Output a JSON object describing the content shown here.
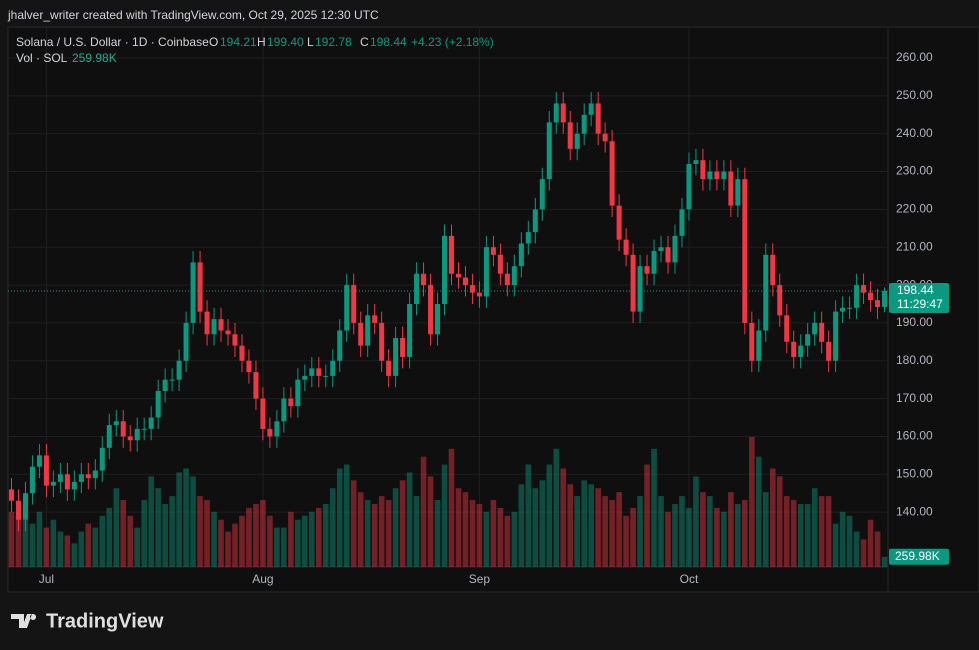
{
  "attribution": "jhalver_writer created with TradingView.com, Oct 29, 2025 12:30 UTC",
  "brand": "TradingView",
  "chart_data": {
    "type": "candlestick",
    "title": "Solana / U.S. Dollar · 1D · Coinbase",
    "legend_letters": {
      "open": "O",
      "high": "H",
      "low": "L",
      "close": "C"
    },
    "last_labels": {
      "open": "194.21",
      "high": "199.40",
      "low": "192.78",
      "close": "198.44"
    },
    "change_label": "+4.23 (+2.18%)",
    "volume_title": "Vol · SOL",
    "volume_label": "259.98K",
    "countdown": "11:29:47",
    "up_color": "#089981",
    "down_color": "#f23645",
    "xlim": [
      -0.5,
      125.5
    ],
    "xticks": [
      {
        "value": 5,
        "label": "Jul"
      },
      {
        "value": 36,
        "label": "Aug"
      },
      {
        "value": 67,
        "label": "Sep"
      },
      {
        "value": 97,
        "label": "Oct"
      }
    ],
    "ylim": [
      125.5,
      268.2
    ],
    "yticks": [
      {
        "value": 140,
        "label": "140.00"
      },
      {
        "value": 150,
        "label": "150.00"
      },
      {
        "value": 160,
        "label": "160.00"
      },
      {
        "value": 170,
        "label": "170.00"
      },
      {
        "value": 180,
        "label": "180.00"
      },
      {
        "value": 190,
        "label": "190.00"
      },
      {
        "value": 200,
        "label": "200.00"
      },
      {
        "value": 210,
        "label": "210.00"
      },
      {
        "value": 220,
        "label": "220.00"
      },
      {
        "value": 230,
        "label": "230.00"
      },
      {
        "value": 240,
        "label": "240.00"
      },
      {
        "value": 250,
        "label": "250.00"
      },
      {
        "value": 260,
        "label": "260.00"
      }
    ],
    "grid": true,
    "open": [
      146,
      143,
      138,
      145,
      152,
      155,
      147,
      148,
      150,
      146,
      148,
      150,
      149,
      151,
      157,
      163,
      164,
      160,
      159,
      162,
      162,
      165,
      172,
      175,
      175,
      180,
      190,
      206,
      193,
      187,
      191,
      188,
      187,
      184,
      180,
      177,
      170,
      162,
      160,
      164,
      170,
      168,
      175,
      176,
      178,
      176,
      176,
      180,
      188,
      200,
      190,
      184,
      192,
      190,
      180,
      176,
      186,
      181,
      195,
      203,
      200,
      187,
      195,
      213,
      203,
      202,
      200,
      198,
      197,
      210,
      208,
      203,
      200,
      205,
      211,
      214,
      220,
      228,
      243,
      248,
      243,
      236,
      240,
      245,
      248,
      240,
      238,
      221,
      212,
      208,
      193,
      205,
      203,
      209,
      210,
      206,
      213,
      220,
      232,
      233,
      228,
      230,
      228,
      230,
      221,
      228,
      190,
      180,
      188,
      208,
      200,
      192,
      185,
      181,
      184,
      187,
      190,
      185,
      180,
      193,
      194,
      194,
      200,
      198,
      196,
      194.21
    ],
    "high": [
      149,
      146,
      148,
      155,
      158,
      158,
      151,
      153,
      153,
      151,
      153,
      153,
      154,
      160,
      166,
      167,
      167,
      163,
      165,
      165,
      168,
      175,
      178,
      178,
      183,
      193,
      209,
      209,
      196,
      194,
      194,
      191,
      190,
      187,
      183,
      180,
      173,
      165,
      167,
      173,
      173,
      178,
      179,
      181,
      181,
      179,
      183,
      191,
      203,
      203,
      193,
      195,
      195,
      193,
      183,
      189,
      189,
      198,
      206,
      206,
      203,
      198,
      216,
      216,
      206,
      205,
      203,
      201,
      213,
      213,
      211,
      206,
      208,
      214,
      217,
      223,
      231,
      246,
      251,
      251,
      246,
      243,
      248,
      251,
      251,
      243,
      241,
      224,
      215,
      211,
      208,
      208,
      212,
      213,
      213,
      216,
      223,
      235,
      236,
      236,
      233,
      233,
      233,
      233,
      231,
      231,
      193,
      191,
      211,
      211,
      203,
      195,
      188,
      187,
      190,
      193,
      193,
      188,
      196,
      197,
      197,
      203,
      203,
      201,
      199,
      199.4
    ],
    "low": [
      140,
      135,
      135,
      142,
      149,
      144,
      144,
      145,
      143,
      143,
      145,
      146,
      146,
      148,
      154,
      160,
      157,
      156,
      156,
      159,
      159,
      162,
      169,
      172,
      172,
      177,
      187,
      190,
      184,
      184,
      185,
      184,
      181,
      177,
      174,
      167,
      159,
      157,
      157,
      161,
      165,
      165,
      172,
      173,
      173,
      173,
      173,
      177,
      185,
      187,
      181,
      181,
      187,
      177,
      173,
      173,
      178,
      178,
      192,
      197,
      184,
      184,
      192,
      200,
      199,
      197,
      195,
      194,
      194,
      205,
      200,
      197,
      197,
      202,
      208,
      211,
      217,
      225,
      240,
      240,
      233,
      233,
      237,
      242,
      237,
      235,
      218,
      209,
      205,
      190,
      190,
      200,
      200,
      206,
      203,
      203,
      210,
      217,
      229,
      225,
      225,
      225,
      225,
      218,
      218,
      187,
      177,
      177,
      185,
      197,
      189,
      182,
      178,
      178,
      181,
      184,
      182,
      177,
      177,
      190,
      191,
      191,
      195,
      193,
      191,
      192.78
    ],
    "close": [
      143,
      138,
      145,
      152,
      155,
      147,
      148,
      150,
      146,
      148,
      150,
      149,
      151,
      157,
      163,
      164,
      160,
      159,
      162,
      162,
      165,
      172,
      175,
      175,
      180,
      190,
      206,
      193,
      187,
      191,
      188,
      187,
      184,
      180,
      177,
      170,
      162,
      160,
      164,
      170,
      168,
      175,
      176,
      178,
      176,
      176,
      180,
      188,
      200,
      190,
      184,
      192,
      190,
      180,
      176,
      186,
      181,
      195,
      203,
      200,
      187,
      195,
      213,
      203,
      202,
      200,
      198,
      197,
      210,
      208,
      203,
      200,
      205,
      211,
      214,
      220,
      228,
      243,
      248,
      243,
      236,
      240,
      245,
      248,
      240,
      238,
      221,
      212,
      208,
      193,
      205,
      203,
      209,
      210,
      206,
      213,
      220,
      232,
      233,
      228,
      230,
      228,
      230,
      221,
      228,
      190,
      180,
      188,
      208,
      200,
      192,
      185,
      181,
      184,
      187,
      190,
      185,
      180,
      193,
      194,
      194,
      200,
      198,
      196,
      194.21,
      198.44
    ],
    "volume": [
      1400000,
      1300000,
      1200000,
      1100000,
      1400000,
      1000000,
      1200000,
      900000,
      800000,
      600000,
      900000,
      1100000,
      1000000,
      1300000,
      1500000,
      2000000,
      1700000,
      1300000,
      1000000,
      1700000,
      2300000,
      2000000,
      1600000,
      1800000,
      2400000,
      2500000,
      2300000,
      1800000,
      1700000,
      1400000,
      1200000,
      900000,
      1100000,
      1300000,
      1500000,
      1600000,
      1700000,
      1300000,
      1000000,
      1000000,
      1400000,
      1200000,
      1300000,
      1400000,
      1500000,
      1600000,
      2000000,
      2500000,
      2600000,
      2200000,
      1900000,
      1700000,
      1600000,
      1800000,
      1700000,
      2000000,
      2200000,
      2400000,
      1800000,
      2800000,
      2300000,
      1700000,
      2600000,
      3000000,
      2000000,
      1900000,
      1700000,
      1600000,
      1400000,
      1700000,
      1500000,
      1300000,
      1400000,
      2100000,
      2600000,
      2000000,
      2200000,
      2600000,
      3000000,
      2500000,
      2100000,
      1800000,
      2200000,
      2100000,
      2000000,
      1800000,
      1700000,
      1900000,
      1300000,
      1500000,
      1800000,
      2600000,
      3000000,
      1800000,
      1400000,
      1600000,
      1800000,
      1500000,
      2300000,
      1900000,
      1800000,
      1500000,
      1400000,
      1900000,
      1600000,
      1700000,
      3300000,
      2800000,
      1900000,
      2500000,
      2300000,
      1800000,
      1700000,
      1600000,
      1600000,
      2000000,
      1800000,
      1800000,
      1100000,
      1400000,
      1300000,
      900000,
      700000,
      1200000,
      900000,
      259980
    ]
  }
}
